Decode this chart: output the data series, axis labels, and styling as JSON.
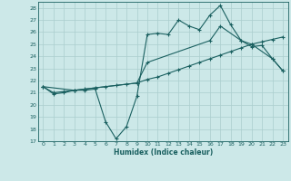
{
  "xlabel": "Humidex (Indice chaleur)",
  "bg_color": "#cce8e8",
  "grid_color": "#aacece",
  "line_color": "#1a6060",
  "xlim": [
    -0.5,
    23.5
  ],
  "ylim": [
    17,
    28.5
  ],
  "yticks": [
    17,
    18,
    19,
    20,
    21,
    22,
    23,
    24,
    25,
    26,
    27,
    28
  ],
  "xticks": [
    0,
    1,
    2,
    3,
    4,
    5,
    6,
    7,
    8,
    9,
    10,
    11,
    12,
    13,
    14,
    15,
    16,
    17,
    18,
    19,
    20,
    21,
    22,
    23
  ],
  "series1_x": [
    0,
    1,
    2,
    3,
    4,
    5,
    6,
    7,
    8,
    9,
    10,
    11,
    12,
    13,
    14,
    15,
    16,
    17,
    18,
    19,
    20,
    21,
    22,
    23
  ],
  "series1_y": [
    21.5,
    20.9,
    21.0,
    21.2,
    21.2,
    21.3,
    18.6,
    17.2,
    18.2,
    20.7,
    25.8,
    25.9,
    25.8,
    27.0,
    26.5,
    26.2,
    27.4,
    28.2,
    26.6,
    25.3,
    24.8,
    24.9,
    23.8,
    22.8
  ],
  "series2_x": [
    0,
    1,
    2,
    3,
    4,
    5,
    6,
    7,
    8,
    9,
    10,
    11,
    12,
    13,
    14,
    15,
    16,
    17,
    18,
    19,
    20,
    21,
    22,
    23
  ],
  "series2_y": [
    21.5,
    21.0,
    21.1,
    21.2,
    21.3,
    21.4,
    21.5,
    21.6,
    21.7,
    21.8,
    22.1,
    22.3,
    22.6,
    22.9,
    23.2,
    23.5,
    23.8,
    24.1,
    24.4,
    24.7,
    25.0,
    25.2,
    25.4,
    25.6
  ],
  "series3_x": [
    0,
    3,
    9,
    10,
    16,
    17,
    19,
    20,
    22,
    23
  ],
  "series3_y": [
    21.5,
    21.2,
    21.8,
    23.5,
    25.3,
    26.5,
    25.3,
    25.0,
    23.8,
    22.8
  ]
}
